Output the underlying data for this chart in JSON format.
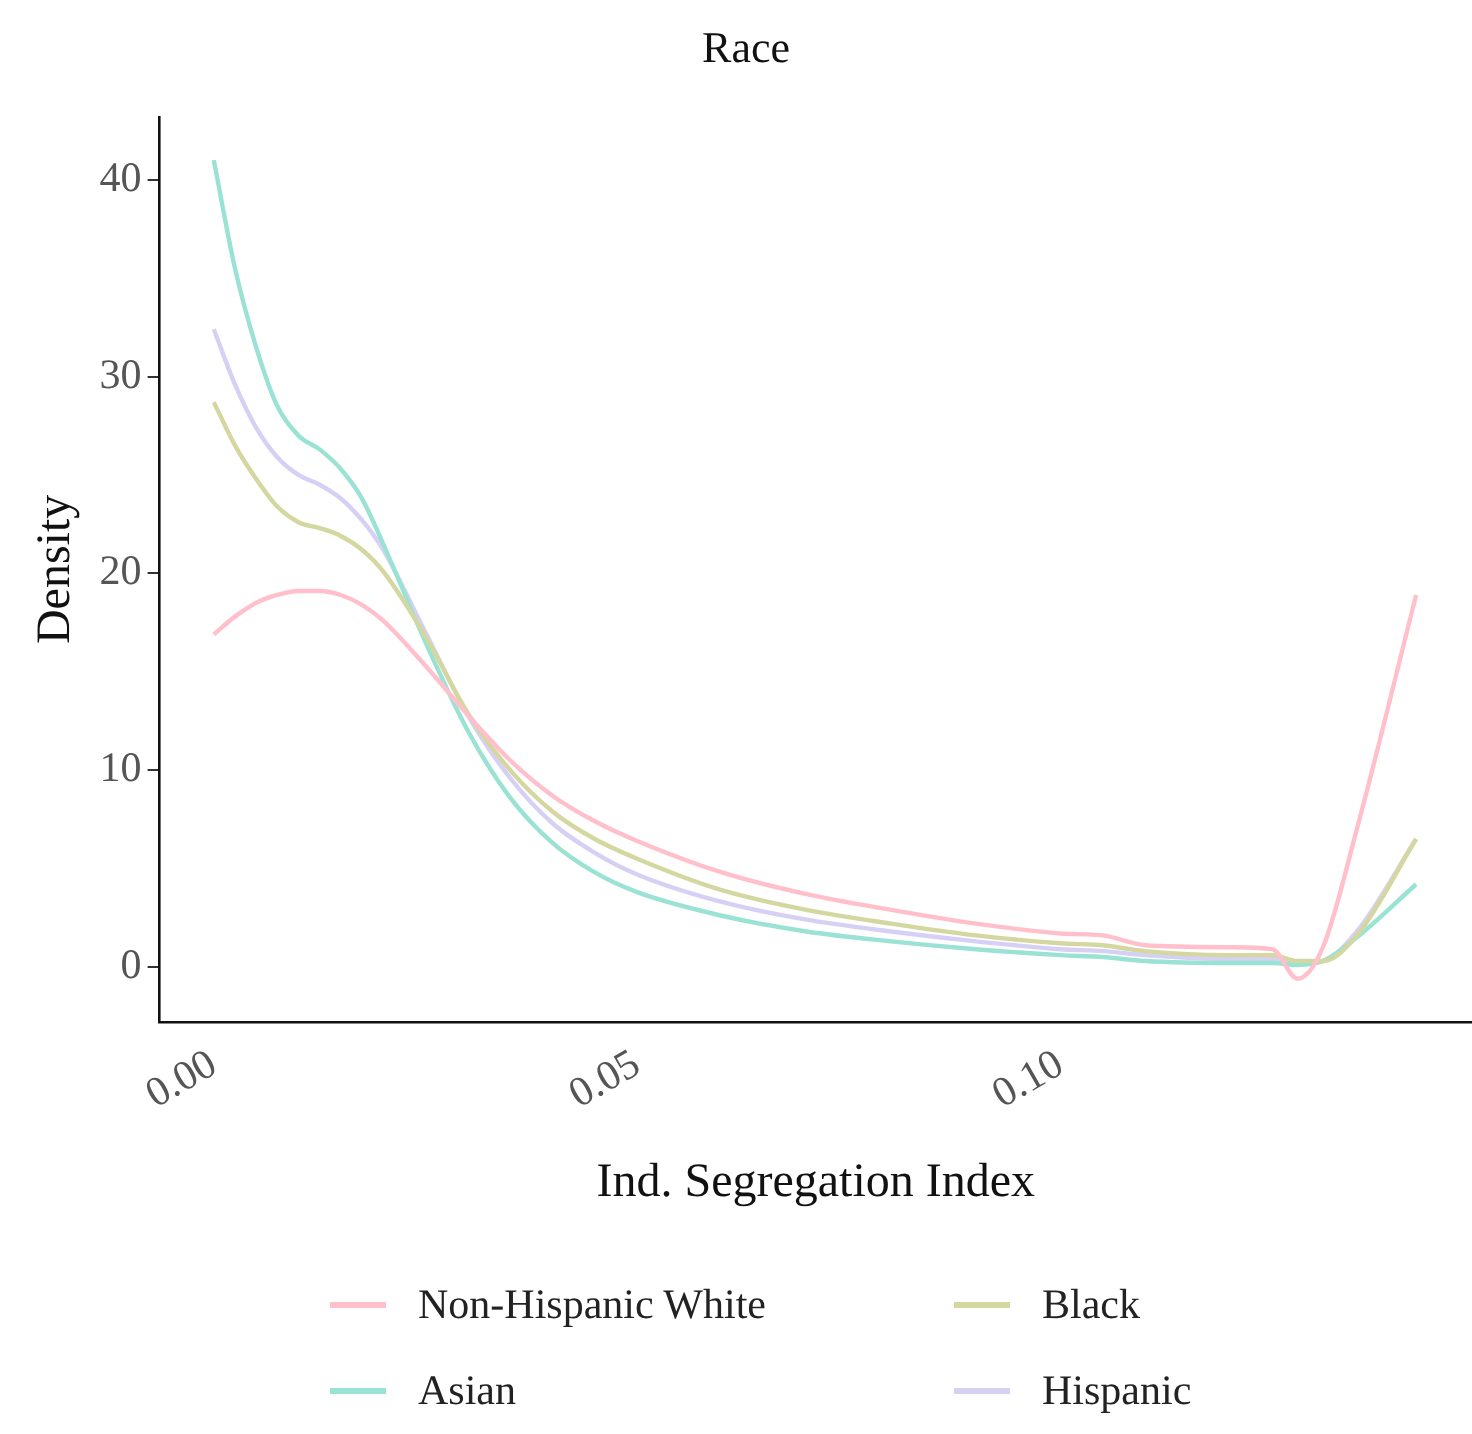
{
  "chart_data": {
    "type": "line",
    "title": "Race",
    "xlabel": "Ind. Segregation Index",
    "ylabel": "Density",
    "x": [
      0,
      0.0025,
      0.005,
      0.0075,
      0.01,
      0.0125,
      0.015,
      0.0175,
      0.02,
      0.025,
      0.03,
      0.035,
      0.04,
      0.045,
      0.05,
      0.06,
      0.07,
      0.08,
      0.09,
      0.1,
      0.105,
      0.11,
      0.12,
      0.125,
      0.128,
      0.131,
      0.135,
      0.142
    ],
    "series": [
      {
        "name": "Non-Hispanic White",
        "color": "#ffc0cb",
        "values": [
          16.9,
          17.8,
          18.5,
          18.9,
          19.1,
          19.1,
          18.9,
          18.4,
          17.6,
          15.3,
          12.8,
          10.5,
          8.7,
          7.4,
          6.4,
          4.8,
          3.7,
          2.9,
          2.2,
          1.7,
          1.6,
          1.1,
          1.0,
          0.9,
          -0.6,
          1.0,
          7.0,
          18.9
        ]
      },
      {
        "name": "Black",
        "color": "#d4d79f",
        "values": [
          28.7,
          26.5,
          24.8,
          23.4,
          22.6,
          22.3,
          21.9,
          21.2,
          20.1,
          16.8,
          12.9,
          10.0,
          7.9,
          6.5,
          5.5,
          3.9,
          2.9,
          2.2,
          1.6,
          1.2,
          1.1,
          0.8,
          0.6,
          0.6,
          0.3,
          0.3,
          1.6,
          6.5
        ]
      },
      {
        "name": "Asian",
        "color": "#99e2d4",
        "values": [
          41,
          35.5,
          31.5,
          28.5,
          27,
          26.3,
          25.3,
          23.8,
          21.5,
          16.5,
          12,
          8.6,
          6.3,
          4.8,
          3.8,
          2.6,
          1.8,
          1.3,
          0.9,
          0.6,
          0.5,
          0.3,
          0.2,
          0.2,
          0.1,
          0.3,
          1.5,
          4.2
        ]
      },
      {
        "name": "Hispanic",
        "color": "#d7d0f5",
        "values": [
          32.4,
          29.6,
          27.4,
          25.9,
          25.0,
          24.5,
          23.8,
          22.7,
          21.2,
          17.0,
          12.8,
          9.6,
          7.3,
          5.8,
          4.7,
          3.3,
          2.4,
          1.8,
          1.3,
          0.9,
          0.8,
          0.6,
          0.4,
          0.4,
          0.2,
          0.3,
          1.8,
          6.5
        ]
      }
    ],
    "xlim": [
      -0.0064,
      0.1486
    ],
    "xticks": [
      {
        "value": 0,
        "label": "0.00"
      },
      {
        "value": 0.05,
        "label": "0.05"
      },
      {
        "value": 0.1,
        "label": "0.10"
      }
    ],
    "ylim": [
      -2.8,
      43.2
    ],
    "yticks": [
      0,
      10,
      20,
      30,
      40
    ],
    "grid": false,
    "legend": "bottom",
    "marker": "none",
    "line_style": "solid"
  }
}
